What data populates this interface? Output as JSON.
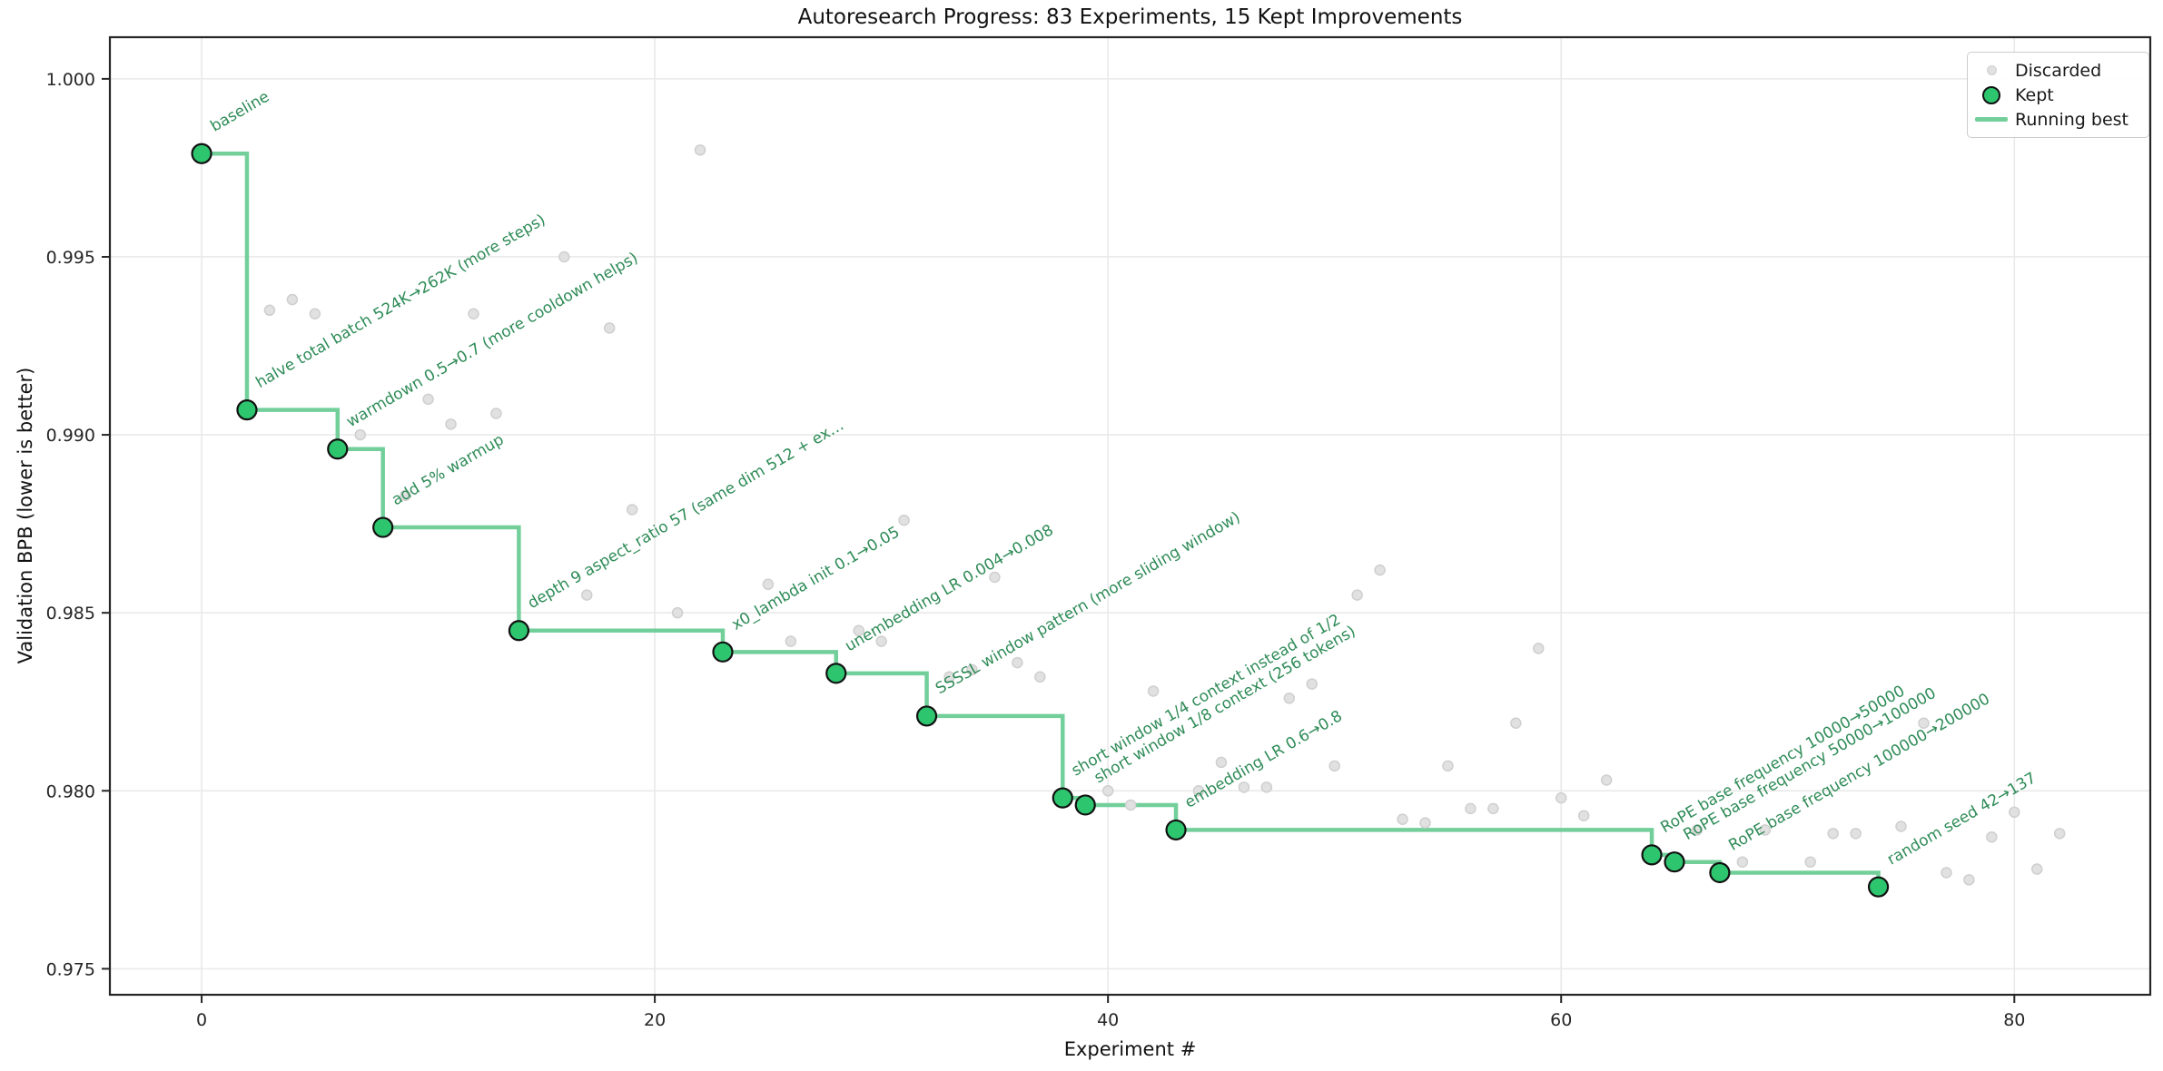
{
  "title": "Autoresearch Progress: 83 Experiments, 15 Kept Improvements",
  "axes": {
    "x_label": "Experiment #",
    "y_label": "Validation BPB (lower is better)",
    "x_ticks": [
      0,
      20,
      40,
      60,
      80
    ],
    "y_ticks": [
      1.0,
      0.995,
      0.99,
      0.985,
      0.98,
      0.975
    ]
  },
  "legend": {
    "items": [
      {
        "label": "Discarded",
        "marker": "small-gray-dot"
      },
      {
        "label": "Kept",
        "marker": "green-dot"
      },
      {
        "label": "Running best",
        "marker": "green-line"
      }
    ]
  },
  "chart_data": {
    "type": "scatter",
    "title": "Autoresearch Progress: 83 Experiments, 15 Kept Improvements",
    "xlabel": "Experiment #",
    "ylabel": "Validation BPB (lower is better)",
    "xlim": [
      -4.05,
      86.0
    ],
    "ylim": [
      0.97427,
      1.00117
    ],
    "grid": true,
    "legend_position": "upper right",
    "colors": {
      "kept_fill": "#2ec56f",
      "kept_edge": "#111111",
      "running_best_line": "#72cf9a",
      "annotation_text": "#2e8b57",
      "discarded_fill": "#e1e1e1",
      "discarded_edge": "#cfcfcf",
      "grid": "#e9e9e9",
      "spine": "#262626"
    },
    "series": [
      {
        "name": "Kept",
        "role": "kept",
        "points": [
          {
            "x": 0,
            "y": 0.9979,
            "label": "baseline"
          },
          {
            "x": 2,
            "y": 0.9907,
            "label": "halve total batch 524K→262K (more steps)"
          },
          {
            "x": 6,
            "y": 0.9896,
            "label": "warmdown 0.5→0.7 (more cooldown helps)"
          },
          {
            "x": 8,
            "y": 0.9874,
            "label": "add 5% warmup"
          },
          {
            "x": 14,
            "y": 0.9845,
            "label": "depth 9 aspect_ratio 57 (same dim 512 + ex…"
          },
          {
            "x": 23,
            "y": 0.9839,
            "label": "x0_lambda init 0.1→0.05"
          },
          {
            "x": 28,
            "y": 0.9833,
            "label": "unembedding LR 0.004→0.008"
          },
          {
            "x": 32,
            "y": 0.9821,
            "label": "SSSSL window pattern (more sliding window)"
          },
          {
            "x": 38,
            "y": 0.9798,
            "label": "short window 1/4 context instead of 1/2"
          },
          {
            "x": 39,
            "y": 0.9796,
            "label": "short window 1/8 context (256 tokens)"
          },
          {
            "x": 43,
            "y": 0.9789,
            "label": "embedding LR 0.6→0.8"
          },
          {
            "x": 64,
            "y": 0.9782,
            "label": "RoPE base frequency 10000→50000"
          },
          {
            "x": 65,
            "y": 0.978,
            "label": "RoPE base frequency 50000→100000"
          },
          {
            "x": 67,
            "y": 0.9777,
            "label": "RoPE base frequency 100000→200000"
          },
          {
            "x": 74,
            "y": 0.9773,
            "label": "random seed 42→137"
          }
        ]
      },
      {
        "name": "Discarded",
        "role": "discarded",
        "points": [
          [
            3,
            0.9935
          ],
          [
            4,
            0.9938
          ],
          [
            5,
            0.9934
          ],
          [
            7,
            0.99
          ],
          [
            9,
            0.9883
          ],
          [
            10,
            0.991
          ],
          [
            11,
            0.9903
          ],
          [
            12,
            0.9934
          ],
          [
            13,
            0.9906
          ],
          [
            16,
            0.995
          ],
          [
            17,
            0.9855
          ],
          [
            18,
            0.993
          ],
          [
            19,
            0.9879
          ],
          [
            21,
            0.985
          ],
          [
            22,
            0.998
          ],
          [
            25,
            0.9858
          ],
          [
            26,
            0.9842
          ],
          [
            29,
            0.9845
          ],
          [
            30,
            0.9842
          ],
          [
            31,
            0.9876
          ],
          [
            33,
            0.9832
          ],
          [
            34,
            0.9834
          ],
          [
            35,
            0.986
          ],
          [
            36,
            0.9836
          ],
          [
            37,
            0.9832
          ],
          [
            40,
            0.98
          ],
          [
            41,
            0.9796
          ],
          [
            42,
            0.9828
          ],
          [
            44,
            0.98
          ],
          [
            45,
            0.9808
          ],
          [
            46,
            0.9801
          ],
          [
            47,
            0.9801
          ],
          [
            48,
            0.9826
          ],
          [
            49,
            0.983
          ],
          [
            50,
            0.9807
          ],
          [
            51,
            0.9855
          ],
          [
            52,
            0.9862
          ],
          [
            53,
            0.9792
          ],
          [
            54,
            0.9791
          ],
          [
            55,
            0.9807
          ],
          [
            56,
            0.9795
          ],
          [
            57,
            0.9795
          ],
          [
            58,
            0.9819
          ],
          [
            59,
            0.984
          ],
          [
            60,
            0.9798
          ],
          [
            61,
            0.9793
          ],
          [
            62,
            0.9803
          ],
          [
            66,
            0.9789
          ],
          [
            68,
            0.978
          ],
          [
            69,
            0.9789
          ],
          [
            71,
            0.978
          ],
          [
            72,
            0.9788
          ],
          [
            73,
            0.9788
          ],
          [
            75,
            0.979
          ],
          [
            76,
            0.9819
          ],
          [
            77,
            0.9777
          ],
          [
            78,
            0.9775
          ],
          [
            79,
            0.9787
          ],
          [
            80,
            0.9794
          ],
          [
            81,
            0.9778
          ],
          [
            82,
            0.9788
          ]
        ]
      },
      {
        "name": "Running best",
        "role": "running-best",
        "note": "step line passing through the kept points"
      }
    ]
  }
}
